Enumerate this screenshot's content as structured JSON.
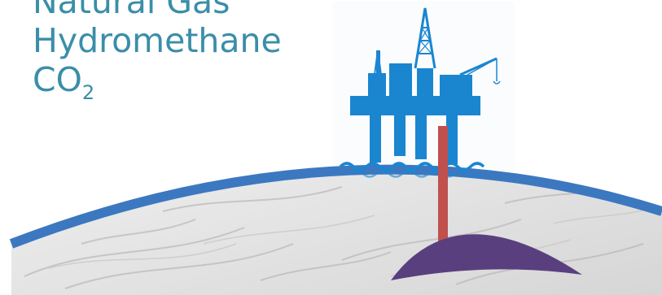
{
  "labels": {
    "line1": "Natural Gas",
    "line2": "Hydromethane",
    "line3_main": "CO",
    "line3_sub": "2"
  },
  "colors": {
    "text": "#3a8ea8",
    "platform": "#1a86d0",
    "ocean_band": "#3c78c0",
    "pipe": "#c0504d",
    "reservoir": "#5a3f7e",
    "rock": "#e3e3e3"
  }
}
